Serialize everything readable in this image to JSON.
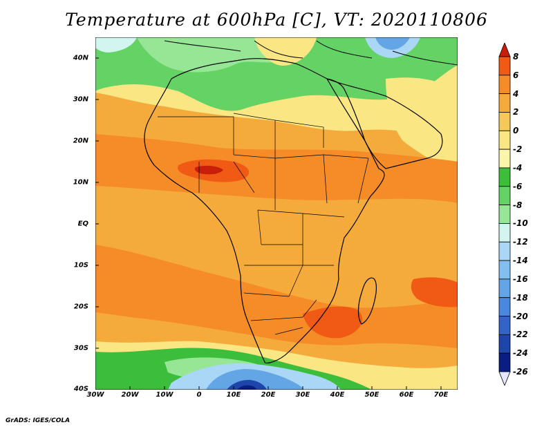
{
  "title": "Temperature at 600hPa [C], VT: 2020110806",
  "credit": "GrADS: IGES/COLA",
  "y_ticks": [
    "40N",
    "30N",
    "20N",
    "10N",
    "EQ",
    "10S",
    "20S",
    "30S",
    "40S"
  ],
  "x_ticks": [
    "30W",
    "20W",
    "10W",
    "0",
    "10E",
    "20E",
    "30E",
    "40E",
    "50E",
    "60E",
    "70E"
  ],
  "colorbar": {
    "levels": [
      "8",
      "6",
      "4",
      "2",
      "0",
      "-2",
      "-4",
      "-6",
      "-8",
      "-10",
      "-12",
      "-14",
      "-16",
      "-18",
      "-20",
      "-22",
      "-24",
      "-26"
    ],
    "colors": [
      "#c81e0a",
      "#f05a14",
      "#f58c28",
      "#f5aa3c",
      "#f5c85a",
      "#fae682",
      "#faf5aa",
      "#3cbe3c",
      "#64d264",
      "#96e696",
      "#d2f5f0",
      "#aad7f5",
      "#82bef0",
      "#64a5e6",
      "#4b87dc",
      "#3264c8",
      "#1e46aa",
      "#0a1e82",
      "#e6e6ff"
    ]
  },
  "map": {
    "region": "Africa",
    "lat_range": [
      -40,
      45
    ],
    "lon_range": [
      -30,
      75
    ],
    "colors": {
      "ocean_base": "#f5aa3c",
      "warm_land": "#f58c28",
      "hot": "#f05a14",
      "north_mild": "#fae682",
      "north_green": "#64d264",
      "north_green_light": "#96e696",
      "south_green": "#3cbe3c",
      "south_cold": "#aad7f5",
      "south_colder": "#64a5e6",
      "south_core": "#1e46aa"
    }
  }
}
